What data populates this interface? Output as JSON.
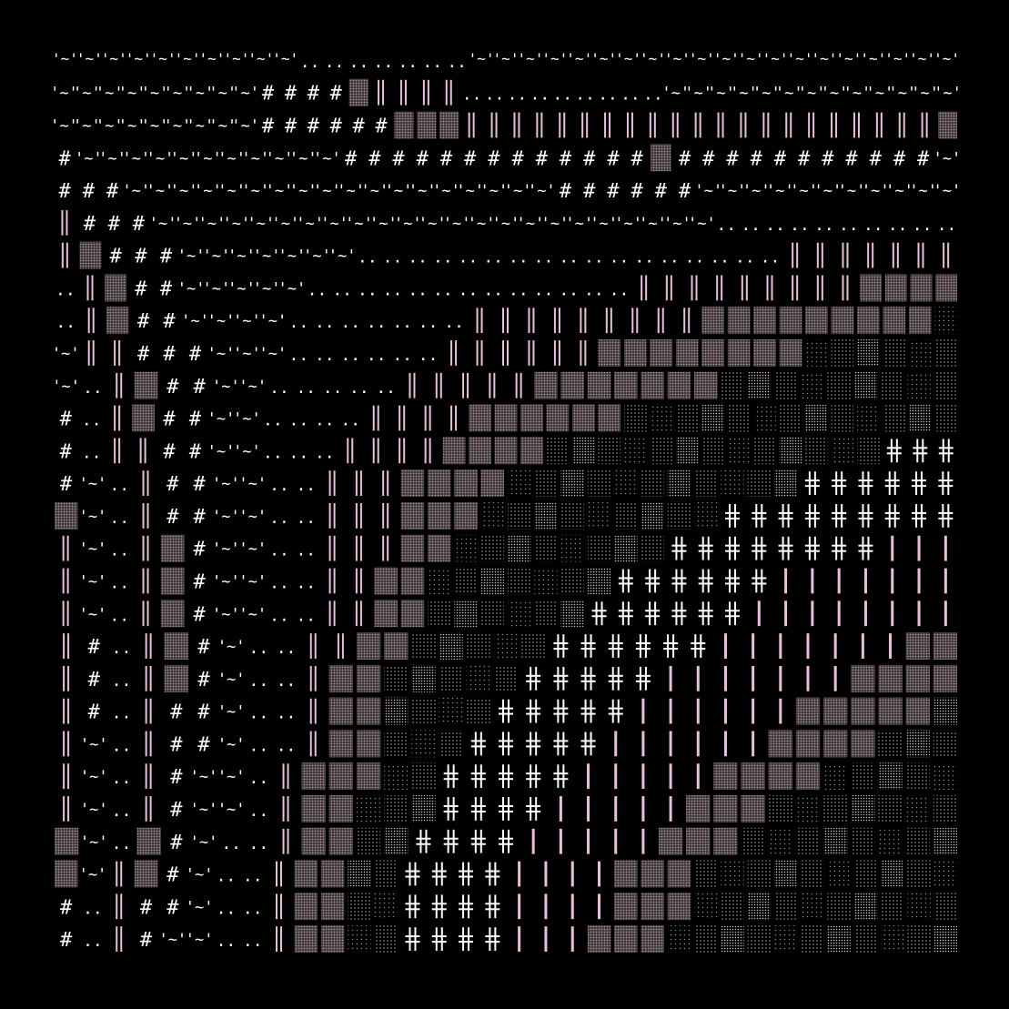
{
  "palette": {
    "background": "#000000",
    "glyph_white": "#ffffff",
    "glyph_pink": "#e8c0dc",
    "block_fill": "#8e7a86",
    "block_dot": "#b8a7b2",
    "dense_dot": "#c8bcc4",
    "medium_dot": "#a8a0a6",
    "sparse_dot": "#8a8488"
  },
  "glyph_legend": [
    {
      "symbol": "'~'",
      "pattern": "tilde-quote",
      "color": "glyph_white"
    },
    {
      "symbol": "#",
      "pattern": "hash",
      "color": "glyph_white"
    },
    {
      "symbol": "..",
      "pattern": "double-dot",
      "color": "glyph_white"
    },
    {
      "symbol": "||",
      "pattern": "double-bar",
      "color": "glyph_pink"
    },
    {
      "symbol": "▓",
      "pattern": "shaded-block",
      "color": "block_fill"
    },
    {
      "symbol": "░",
      "pattern": "dotted-block",
      "color": "medium_dot"
    },
    {
      "symbol": "╬",
      "pattern": "cross-bar",
      "color": "glyph_white"
    },
    {
      "symbol": "|",
      "pattern": "single-bar",
      "color": "glyph_pink"
    }
  ],
  "grid": {
    "rows": 28,
    "cols": 36,
    "cells": [
      "''''''''''.......''''''''''''''''''''",
      "TTTTTTTTT####BPPPP.........TTTTTTTTTTTTT",
      "TTTTTTTTT######BBBPPPPPPPPPPPPPPPPPPPPPB",
      "#TTTTTTTTTTT#############B###########T",
      "###TTTTTTTTTTTTTTTTTT######TTTTTTTTTTT",
      "P###TTTTTTTTTTTTTTTTTTTTTTT..........",
      "PB###TTTTTTT.................PPPPPPP",
      ".PB##TTTTT.............PPPPPPPPPBBBB",
      ".PB##TTTT.......PPPPPPPPPBBBBBBBBBD",
      "TPP###TTT......PPPPPPBBBBBBBBDDDDDD",
      "T.PB##TT.....PPPPPBBBBBBBDDDDDDDDD",
      "#.PB##TT....PPPPBBBBBBDDDDDDDDDDDDD",
      "#.PP##TT...PPPPBBBBDDDDDDDDDDDDDXXX",
      "#T.P##TT..PPPBBBBDDDDDDDDDDDXXXXXX",
      "BT.P##TT..PPPBBBDDDDDDDDDXXXXXXXXX",
      "PT.PB#TT..PPPBBDDDDDDDDXXXXXXXXIII",
      "PT.PB#TT..PPBBDDDDDDDXXXXXXIIIIIII",
      "PT.PB#TT..PPBBDDDDDDXXXXXXIIIIIIII",
      "P#.PB#T..PPBBDDDDDXXXXXXIIIIIIIBB",
      "P#.PB#T..PBBDDDDDXXXXXIIIIIIIBBBB",
      "P#.P##T..PBBDDDDXXXXXIIIIIIBBBBBD",
      "PT.P##T..PBBDDDXXXXXIIIIIIBBBBDDD",
      "PT.P#TT.PBBBDDXXXXXIIIIIBBBBDDDDD",
      "PT.P#TT.PBBDDDXXXXIIIIIBBBDDDDDDD",
      "BT.B#T..PBBDDXXXXIIIIIBBBDDDDDDDD",
      "BTPB#T..PBBDDXXXXIIIIBBBDDDDDDDDDD",
      "#.P##T..PBBDDXXXXIIIIBBBDDDDDDDDDD",
      "#.P#TT..PBBDDXXXXIIIBBBDDDDDDDDDDD"
    ]
  }
}
